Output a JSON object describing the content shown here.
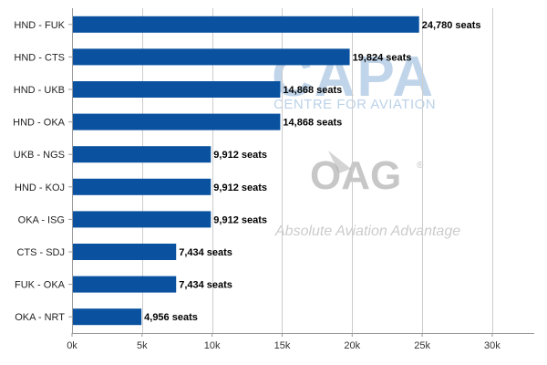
{
  "chart_data": {
    "type": "bar",
    "orientation": "horizontal",
    "categories": [
      "HND - FUK",
      "HND - CTS",
      "HND - UKB",
      "HND - OKA",
      "UKB - NGS",
      "HND - KOJ",
      "OKA - ISG",
      "CTS - SDJ",
      "FUK - OKA",
      "OKA - NRT"
    ],
    "values": [
      24780,
      19824,
      14868,
      14868,
      9912,
      9912,
      9912,
      7434,
      7434,
      4956
    ],
    "data_labels": [
      "24,780 seats",
      "19,824 seats",
      "14,868 seats",
      "14,868 seats",
      "9,912 seats",
      "9,912 seats",
      "9,912 seats",
      "7,434 seats",
      "7,434 seats",
      "4,956 seats"
    ],
    "xticks": [
      0,
      5000,
      10000,
      15000,
      20000,
      25000,
      30000
    ],
    "xtick_labels": [
      "0k",
      "5k",
      "10k",
      "15k",
      "20k",
      "25k",
      "30k"
    ],
    "xlim": [
      0,
      33000
    ],
    "grid": "vertical",
    "bar_color": "#0a52a0",
    "title": "",
    "xlabel": "",
    "ylabel": ""
  },
  "watermarks": {
    "capa": "CAPA",
    "capa_sub": "CENTRE FOR AVIATION",
    "oag": "OAG",
    "oag_registered": "®",
    "oag_sub": "Absolute Aviation Advantage"
  }
}
